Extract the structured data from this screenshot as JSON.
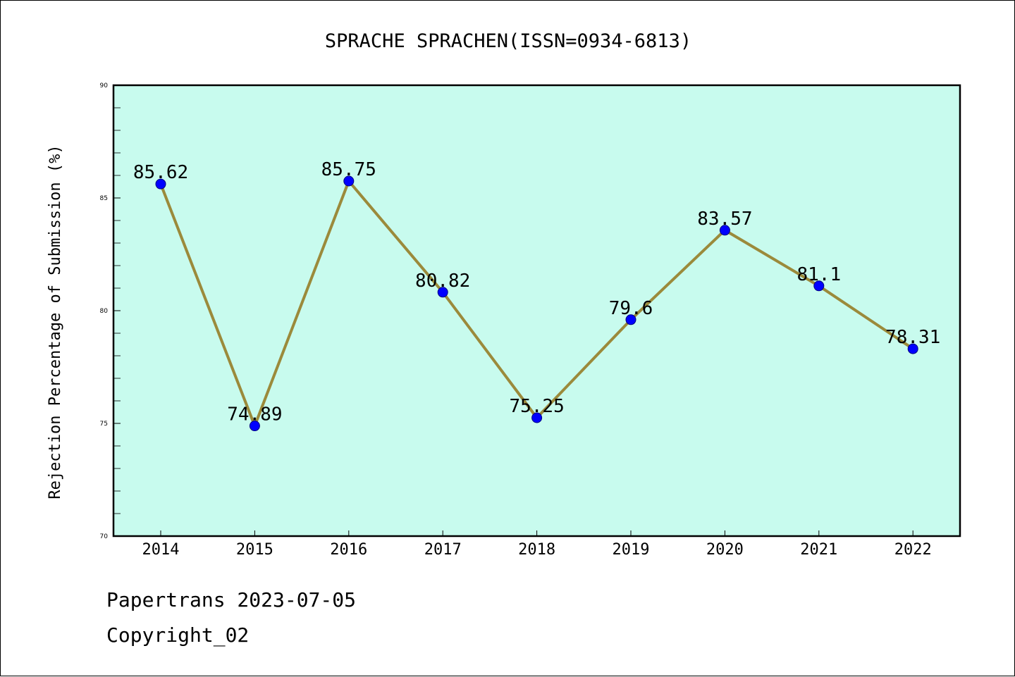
{
  "chart_data": {
    "type": "line",
    "title": "SPRACHE SPRACHEN(ISSN=0934-6813)",
    "xlabel": "",
    "ylabel": "Rejection Percentage of Submission (%)",
    "categories": [
      "2014",
      "2015",
      "2016",
      "2017",
      "2018",
      "2019",
      "2020",
      "2021",
      "2022"
    ],
    "series": [
      {
        "values": [
          85.62,
          74.89,
          85.75,
          80.82,
          75.25,
          79.6,
          83.57,
          81.1,
          78.31
        ],
        "labels": [
          "85.62",
          "74.89",
          "85.75",
          "80.82",
          "75.25",
          "79.6",
          "83.57",
          "81.1",
          "78.31"
        ]
      }
    ],
    "ylim": [
      70,
      90
    ],
    "yticks": [
      "70",
      "75",
      "80",
      "85",
      "90"
    ],
    "grid": false,
    "plot_background": "#c8fbee",
    "line_color": "#9b8a3b",
    "marker_color": "#0000ff"
  },
  "footer": {
    "line1": "Papertrans 2023-07-05",
    "line2": "Copyright_02"
  }
}
